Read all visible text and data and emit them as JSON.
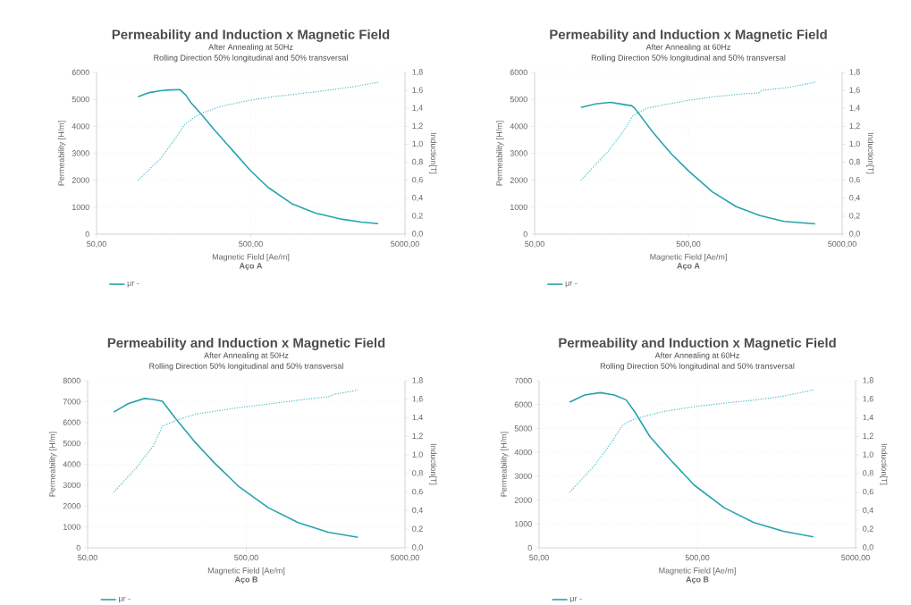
{
  "chart_data": [
    {
      "type": "line",
      "title": "Permeability and Induction x Magnetic Field",
      "subtitle": "After Annealing at 50Hz",
      "xlabel": "Magnetic Field [Ae/m]",
      "ylabel": "Permeability [H/m]",
      "y2label": "Induction[T]",
      "annotations": [
        "Rolling Direction 50% longitudinal and 50% transversal",
        "Aço A"
      ],
      "log": "x",
      "grid": true,
      "legend": "bottom",
      "xlim": [
        50,
        5000
      ],
      "xticks": [
        {
          "value": 50,
          "label": "50,00"
        },
        {
          "value": 500,
          "label": "500,00"
        },
        {
          "value": 5000,
          "label": "5000,00"
        }
      ],
      "ylim": [
        0,
        6000
      ],
      "yticks": [
        0,
        1000,
        2000,
        3000,
        4000,
        5000,
        6000
      ],
      "y2lim": [
        0,
        1.8
      ],
      "y2ticks": [
        {
          "value": 0,
          "label": "0,0"
        },
        {
          "value": 0.2,
          "label": "0,2"
        },
        {
          "value": 0.4,
          "label": "0,4"
        },
        {
          "value": 0.6,
          "label": "0,6"
        },
        {
          "value": 0.8,
          "label": "0,8"
        },
        {
          "value": 1.0,
          "label": "1,0"
        },
        {
          "value": 1.2,
          "label": "1,2"
        },
        {
          "value": 1.4,
          "label": "1,4"
        },
        {
          "value": 1.6,
          "label": "1,6"
        },
        {
          "value": 1.8,
          "label": "1,8"
        }
      ],
      "series": [
        {
          "name": "μr -",
          "color": "#26a3ad",
          "line_style": "solid",
          "x": [
            93,
            110,
            130,
            150,
            174,
            190,
            203,
            243,
            290,
            379,
            494,
            645,
            922,
            1316,
            1963,
            2600,
            3350
          ],
          "values": [
            5100,
            5250,
            5320,
            5350,
            5360,
            5150,
            4900,
            4400,
            3870,
            3120,
            2380,
            1740,
            1130,
            780,
            550,
            450,
            390
          ]
        },
        {
          "color": "#4bbcc6",
          "line_style": "dotted",
          "axis": "y2",
          "x": [
            93,
            130,
            160,
            186,
            215,
            243,
            317,
            494,
            700,
            1007,
            1574,
            2300,
            3350
          ],
          "values": [
            0.6,
            0.84,
            1.05,
            1.22,
            1.3,
            1.35,
            1.42,
            1.49,
            1.53,
            1.56,
            1.6,
            1.64,
            1.69
          ]
        }
      ]
    },
    {
      "type": "line",
      "title": "Permeability and Induction x Magnetic Field",
      "subtitle": "After Annealing at 60Hz",
      "xlabel": "Magnetic Field [Ae/m]",
      "ylabel": "Permeability [H/m]",
      "y2label": "Induction[T]",
      "annotations": [
        "Rolling Direction 50% longitudinal and 50% transversal",
        "Aço A"
      ],
      "log": "x",
      "grid": true,
      "legend": "bottom",
      "xlim": [
        50,
        5000
      ],
      "xticks": [
        {
          "value": 50,
          "label": "50,00"
        },
        {
          "value": 500,
          "label": "500,00"
        },
        {
          "value": 5000,
          "label": "5000,00"
        }
      ],
      "ylim": [
        0,
        6000
      ],
      "yticks": [
        0,
        1000,
        2000,
        3000,
        4000,
        5000,
        6000
      ],
      "y2lim": [
        0,
        1.8
      ],
      "y2ticks": [
        {
          "value": 0,
          "label": "0,0"
        },
        {
          "value": 0.2,
          "label": "0,2"
        },
        {
          "value": 0.4,
          "label": "0,4"
        },
        {
          "value": 0.6,
          "label": "0,6"
        },
        {
          "value": 0.8,
          "label": "0,8"
        },
        {
          "value": 1.0,
          "label": "1,0"
        },
        {
          "value": 1.2,
          "label": "1,2"
        },
        {
          "value": 1.4,
          "label": "1,4"
        },
        {
          "value": 1.6,
          "label": "1,6"
        },
        {
          "value": 1.8,
          "label": "1,8"
        }
      ],
      "series": [
        {
          "name": "μr -",
          "color": "#26a3ad",
          "line_style": "solid",
          "x": [
            100,
            125,
            156,
            185,
            214,
            224,
            293,
            383,
            500,
            715,
            1023,
            1463,
            2090,
            3340
          ],
          "values": [
            4700,
            4830,
            4890,
            4820,
            4760,
            4670,
            3790,
            3010,
            2350,
            1570,
            1020,
            690,
            470,
            380
          ]
        },
        {
          "color": "#4bbcc6",
          "line_style": "dotted",
          "axis": "y2",
          "x": [
            100,
            150,
            190,
            218,
            267,
            350,
            500,
            750,
            1100,
            1430,
            1500,
            2200,
            3340
          ],
          "values": [
            0.6,
            0.92,
            1.15,
            1.32,
            1.4,
            1.44,
            1.49,
            1.53,
            1.56,
            1.57,
            1.6,
            1.63,
            1.69
          ]
        }
      ]
    },
    {
      "type": "line",
      "title": "Permeability and Induction x Magnetic Field",
      "subtitle": "After Annealing at 50Hz",
      "xlabel": "Magnetic Field [Ae/m]",
      "ylabel": "Permeability [H/m]",
      "y2label": "Induction[T]",
      "annotations": [
        "Rolling Direction 50% longitudinal and 50% transversal",
        "Aço B"
      ],
      "log": "x",
      "grid": true,
      "legend": "bottom",
      "xlim": [
        50,
        5000
      ],
      "xticks": [
        {
          "value": 50,
          "label": "50,00"
        },
        {
          "value": 500,
          "label": "500,00"
        },
        {
          "value": 5000,
          "label": "5000,00"
        }
      ],
      "ylim": [
        0,
        8000
      ],
      "yticks": [
        0,
        1000,
        2000,
        3000,
        4000,
        5000,
        6000,
        7000,
        8000
      ],
      "y2lim": [
        0,
        1.8
      ],
      "y2ticks": [
        {
          "value": 0,
          "label": "0,0"
        },
        {
          "value": 0.2,
          "label": "0,2"
        },
        {
          "value": 0.4,
          "label": "0,4"
        },
        {
          "value": 0.6,
          "label": "0,6"
        },
        {
          "value": 0.8,
          "label": "0,8"
        },
        {
          "value": 1.0,
          "label": "1,0"
        },
        {
          "value": 1.2,
          "label": "1,2"
        },
        {
          "value": 1.4,
          "label": "1,4"
        },
        {
          "value": 1.6,
          "label": "1,6"
        },
        {
          "value": 1.8,
          "label": "1,8"
        }
      ],
      "series": [
        {
          "name": "μr -",
          "color": "#26a3ad",
          "line_style": "solid",
          "x": [
            73,
            90,
            114,
            130,
            148,
            179,
            233,
            315,
            446,
            688,
            1060,
            1635,
            2525
          ],
          "values": [
            6500,
            6900,
            7150,
            7100,
            7020,
            6190,
            5130,
            4060,
            2950,
            1920,
            1210,
            750,
            500
          ]
        },
        {
          "color": "#4bbcc6",
          "line_style": "dotted",
          "axis": "y2",
          "x": [
            73,
            100,
            130,
            148,
            185,
            240,
            446,
            700,
            1060,
            1680,
            1760,
            2525
          ],
          "values": [
            0.6,
            0.85,
            1.1,
            1.31,
            1.38,
            1.44,
            1.51,
            1.55,
            1.59,
            1.63,
            1.65,
            1.7
          ]
        }
      ]
    },
    {
      "type": "line",
      "title": "Permeability and Induction x Magnetic Field",
      "subtitle": "After Annealing at 60Hz",
      "xlabel": "Magnetic Field [Ae/m]",
      "ylabel": "Permeability [H/m]",
      "y2label": "Induction[T]",
      "annotations": [
        "Rolling Direction 50% longitudinal and 50% transversal",
        "Aço B"
      ],
      "log": "x",
      "grid": true,
      "legend": "bottom",
      "xlim": [
        50,
        5000
      ],
      "xticks": [
        {
          "value": 50,
          "label": "50,00"
        },
        {
          "value": 500,
          "label": "500,00"
        },
        {
          "value": 5000,
          "label": "5000,00"
        }
      ],
      "ylim": [
        0,
        7000
      ],
      "yticks": [
        0,
        1000,
        2000,
        3000,
        4000,
        5000,
        6000,
        7000
      ],
      "y2lim": [
        0,
        1.8
      ],
      "y2ticks": [
        {
          "value": 0,
          "label": "0,0"
        },
        {
          "value": 0.2,
          "label": "0,2"
        },
        {
          "value": 0.4,
          "label": "0,4"
        },
        {
          "value": 0.6,
          "label": "0,6"
        },
        {
          "value": 0.8,
          "label": "0,8"
        },
        {
          "value": 1.0,
          "label": "1,0"
        },
        {
          "value": 1.2,
          "label": "1,2"
        },
        {
          "value": 1.4,
          "label": "1,4"
        },
        {
          "value": 1.6,
          "label": "1,6"
        },
        {
          "value": 1.8,
          "label": "1,8"
        }
      ],
      "series": [
        {
          "name": "μr -",
          "color": "#26a3ad",
          "line_style": "solid",
          "x": [
            78,
            97,
            122,
            149,
            177,
            201,
            250,
            339,
            479,
            738,
            1138,
            1753,
            2704
          ],
          "values": [
            6100,
            6400,
            6500,
            6400,
            6200,
            5700,
            4670,
            3680,
            2620,
            1680,
            1060,
            690,
            460
          ]
        },
        {
          "color": "#4bbcc6",
          "line_style": "dotted",
          "axis": "y2",
          "x": [
            78,
            110,
            140,
            170,
            201,
            310,
            479,
            750,
            1138,
            1700,
            2704
          ],
          "values": [
            0.6,
            0.87,
            1.11,
            1.33,
            1.39,
            1.47,
            1.52,
            1.56,
            1.59,
            1.63,
            1.7
          ]
        }
      ]
    }
  ]
}
